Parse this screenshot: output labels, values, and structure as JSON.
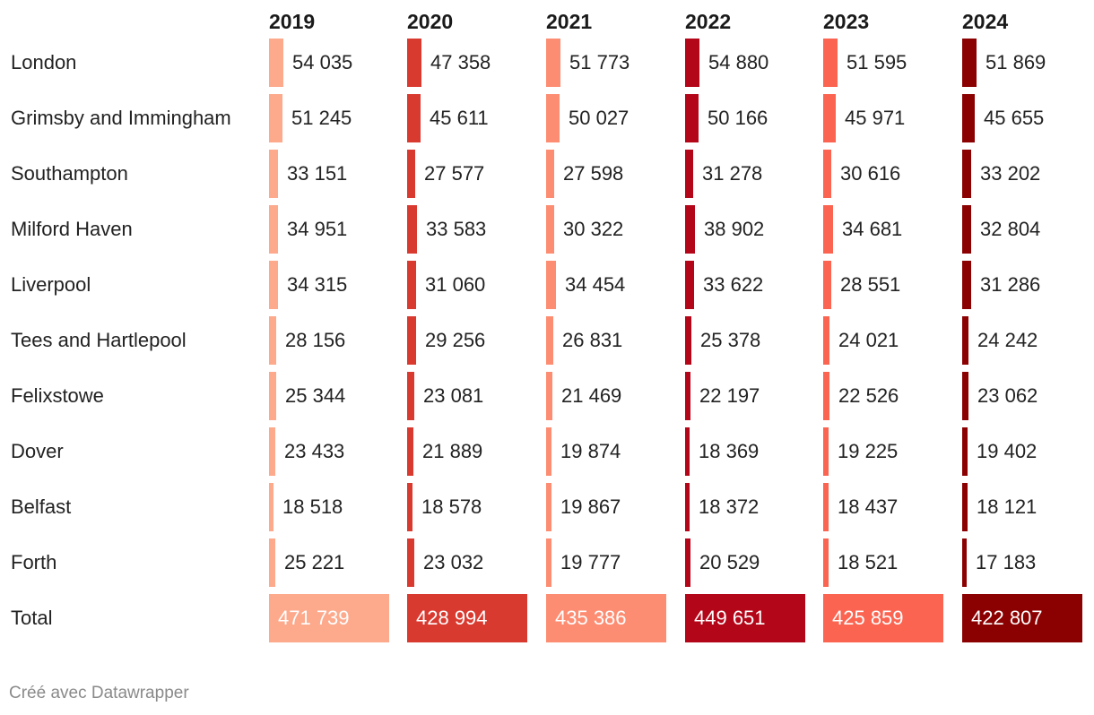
{
  "chart_data": {
    "type": "table",
    "title": "",
    "columns": [
      "2019",
      "2020",
      "2021",
      "2022",
      "2023",
      "2024"
    ],
    "column_colors": [
      "#fca98c",
      "#d93a30",
      "#fd8d72",
      "#b30618",
      "#fb6450",
      "#8b0000"
    ],
    "rows": [
      {
        "label": "London",
        "values": [
          "54 035",
          "47 358",
          "51 773",
          "54 880",
          "51 595",
          "51 869"
        ],
        "numbers": [
          54035,
          47358,
          51773,
          54880,
          51595,
          51869
        ]
      },
      {
        "label": "Grimsby and Immingham",
        "values": [
          "51 245",
          "45 611",
          "50 027",
          "50 166",
          "45 971",
          "45 655"
        ],
        "numbers": [
          51245,
          45611,
          50027,
          50166,
          45971,
          45655
        ]
      },
      {
        "label": "Southampton",
        "values": [
          "33 151",
          "27 577",
          "27 598",
          "31 278",
          "30 616",
          "33 202"
        ],
        "numbers": [
          33151,
          27577,
          27598,
          31278,
          30616,
          33202
        ]
      },
      {
        "label": "Milford Haven",
        "values": [
          "34 951",
          "33 583",
          "30 322",
          "38 902",
          "34 681",
          "32 804"
        ],
        "numbers": [
          34951,
          33583,
          30322,
          38902,
          34681,
          32804
        ]
      },
      {
        "label": "Liverpool",
        "values": [
          "34 315",
          "31 060",
          "34 454",
          "33 622",
          "28 551",
          "31 286"
        ],
        "numbers": [
          34315,
          31060,
          34454,
          33622,
          28551,
          31286
        ]
      },
      {
        "label": "Tees and Hartlepool",
        "values": [
          "28 156",
          "29 256",
          "26 831",
          "25 378",
          "24 021",
          "24 242"
        ],
        "numbers": [
          28156,
          29256,
          26831,
          25378,
          24021,
          24242
        ]
      },
      {
        "label": "Felixstowe",
        "values": [
          "25 344",
          "23 081",
          "21 469",
          "22 197",
          "22 526",
          "23 062"
        ],
        "numbers": [
          25344,
          23081,
          21469,
          22197,
          22526,
          23062
        ]
      },
      {
        "label": "Dover",
        "values": [
          "23 433",
          "21 889",
          "19 874",
          "18 369",
          "19 225",
          "19 402"
        ],
        "numbers": [
          23433,
          21889,
          19874,
          18369,
          19225,
          19402
        ]
      },
      {
        "label": "Belfast",
        "values": [
          "18 518",
          "18 578",
          "19 867",
          "18 372",
          "18 437",
          "18 121"
        ],
        "numbers": [
          18518,
          18578,
          19867,
          18372,
          18437,
          18121
        ]
      },
      {
        "label": "Forth",
        "values": [
          "25 221",
          "23 032",
          "19 777",
          "20 529",
          "18 521",
          "17 183"
        ],
        "numbers": [
          25221,
          23032,
          19777,
          20529,
          18521,
          17183
        ]
      }
    ],
    "total": {
      "label": "Total",
      "values": [
        "471 739",
        "428 994",
        "435 386",
        "449 651",
        "425 859",
        "422 807"
      ],
      "numbers": [
        471739,
        428994,
        435386,
        449651,
        425859,
        422807
      ]
    }
  },
  "footer": "Créé avec Datawrapper"
}
